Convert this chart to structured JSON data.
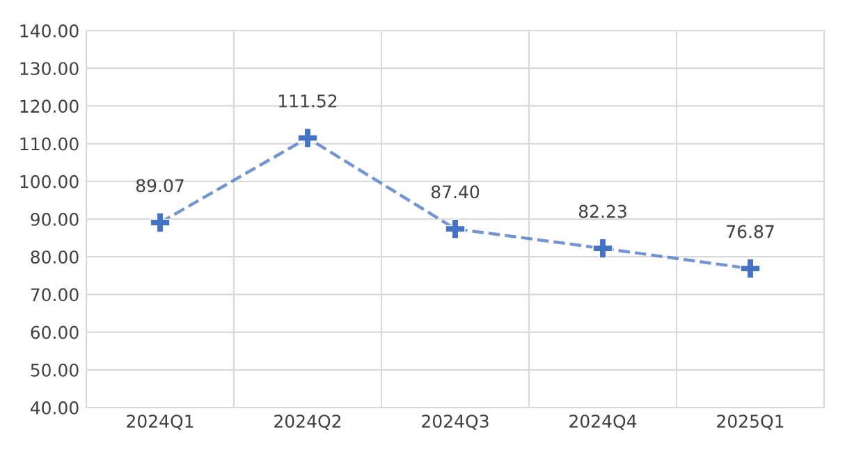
{
  "chart_data": {
    "type": "line",
    "categories": [
      "2024Q1",
      "2024Q2",
      "2024Q3",
      "2024Q4",
      "2025Q1"
    ],
    "series": [
      {
        "color": "#4472c4",
        "values": [
          89.07,
          111.52,
          87.4,
          82.23,
          76.87
        ],
        "value_labels": [
          "89.07",
          "111.52",
          "87.40",
          "82.23",
          "76.87"
        ]
      }
    ],
    "ylim": [
      40,
      140
    ],
    "yticks": [
      {
        "value": 40,
        "label": "40.00"
      },
      {
        "value": 50,
        "label": "50.00"
      },
      {
        "value": 60,
        "label": "60.00"
      },
      {
        "value": 70,
        "label": "70.00"
      },
      {
        "value": 80,
        "label": "80.00"
      },
      {
        "value": 90,
        "label": "90.00"
      },
      {
        "value": 100,
        "label": "100.00"
      },
      {
        "value": 110,
        "label": "110.00"
      },
      {
        "value": 120,
        "label": "120.00"
      },
      {
        "value": 130,
        "label": "130.00"
      },
      {
        "value": 140,
        "label": "140.00"
      }
    ],
    "grid": true,
    "marker": "cross",
    "line_style": "dashed"
  }
}
